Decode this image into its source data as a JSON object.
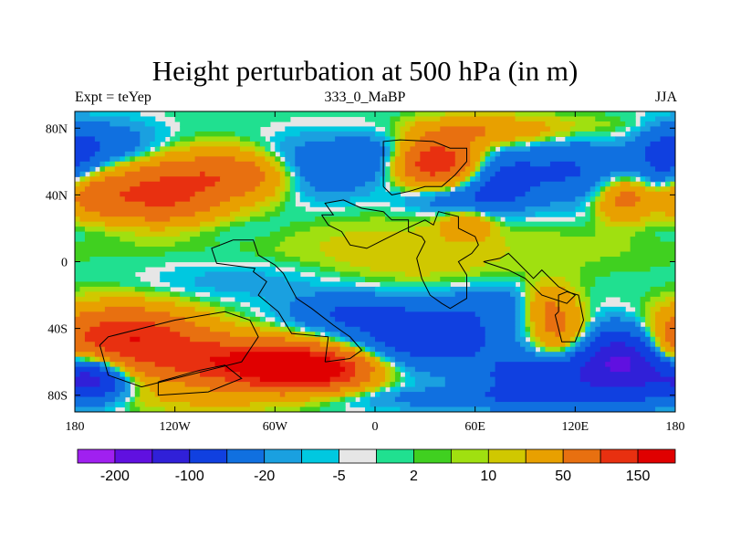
{
  "title": "Height perturbation at 500 hPa (in m)",
  "subtitle_left": "Expt = teYep",
  "subtitle_center": "333_0_MaBP",
  "subtitle_right": "JJA",
  "map": {
    "lon_range": [
      -180,
      180
    ],
    "lat_range": [
      -90,
      90
    ],
    "lon_ticks": [
      {
        "value": -180,
        "label": "180"
      },
      {
        "value": -120,
        "label": "120W"
      },
      {
        "value": -60,
        "label": "60W"
      },
      {
        "value": 0,
        "label": "0"
      },
      {
        "value": 60,
        "label": "60E"
      },
      {
        "value": 120,
        "label": "120E"
      },
      {
        "value": 180,
        "label": "180"
      }
    ],
    "lat_ticks": [
      {
        "value": 80,
        "label": "80N"
      },
      {
        "value": 40,
        "label": "40N"
      },
      {
        "value": 0,
        "label": "0"
      },
      {
        "value": -40,
        "label": "40S"
      },
      {
        "value": -80,
        "label": "80S"
      }
    ],
    "background_color": "#e6e6e6"
  },
  "chart_data": {
    "type": "heatmap",
    "title": "Height perturbation at 500 hPa (in m)",
    "units": "m",
    "x_axis": "longitude",
    "y_axis": "latitude",
    "xlim": [
      -180,
      180
    ],
    "ylim": [
      -90,
      90
    ],
    "contour_levels": [
      -300,
      -200,
      -150,
      -100,
      -50,
      -20,
      -10,
      -5,
      -2,
      2,
      5,
      10,
      20,
      50,
      100,
      150,
      200
    ],
    "colorbar_labels": [
      {
        "after_box": 1,
        "label": "-200"
      },
      {
        "after_box": 3,
        "label": "-100"
      },
      {
        "after_box": 5,
        "label": "-20"
      },
      {
        "after_box": 7,
        "label": "-5"
      },
      {
        "after_box": 9,
        "label": "2"
      },
      {
        "after_box": 11,
        "label": "10"
      },
      {
        "after_box": 13,
        "label": "50"
      },
      {
        "after_box": 15,
        "label": "150"
      }
    ],
    "colors": [
      "#a020f0",
      "#6010e0",
      "#3020d8",
      "#1040e0",
      "#1070e0",
      "#1aa0e0",
      "#00c8e0",
      "#e6e6e6",
      "#20e090",
      "#40d020",
      "#a0e010",
      "#d0c800",
      "#e8a000",
      "#e87010",
      "#e83010",
      "#e00000"
    ],
    "features": [
      {
        "lon": -130,
        "lat": 40,
        "amp": 110,
        "sx": 25,
        "sy": 13
      },
      {
        "lon": -80,
        "lat": 52,
        "amp": 90,
        "sx": 28,
        "sy": 10
      },
      {
        "lon": -40,
        "lat": 55,
        "amp": -60,
        "sx": 25,
        "sy": 12
      },
      {
        "lon": 10,
        "lat": 63,
        "amp": -50,
        "sx": 20,
        "sy": 10
      },
      {
        "lon": 35,
        "lat": 60,
        "amp": 160,
        "sx": 18,
        "sy": 10
      },
      {
        "lon": 65,
        "lat": 78,
        "amp": 45,
        "sx": 30,
        "sy": 6
      },
      {
        "lon": 75,
        "lat": 50,
        "amp": -60,
        "sx": 18,
        "sy": 12
      },
      {
        "lon": 120,
        "lat": 80,
        "amp": 12,
        "sx": 40,
        "sy": 6
      },
      {
        "lon": 120,
        "lat": 55,
        "amp": -50,
        "sx": 22,
        "sy": 14
      },
      {
        "lon": 150,
        "lat": 38,
        "amp": 70,
        "sx": 12,
        "sy": 9
      },
      {
        "lon": 175,
        "lat": 60,
        "amp": -60,
        "sx": 14,
        "sy": 14
      },
      {
        "lon": -170,
        "lat": 40,
        "amp": 60,
        "sx": 14,
        "sy": 9
      },
      {
        "lon": -160,
        "lat": 70,
        "amp": -40,
        "sx": 22,
        "sy": 10
      },
      {
        "lon": -130,
        "lat": 20,
        "amp": -12,
        "sx": 45,
        "sy": 6
      },
      {
        "lon": -20,
        "lat": 10,
        "amp": 9,
        "sx": 40,
        "sy": 14
      },
      {
        "lon": 55,
        "lat": 22,
        "amp": 45,
        "sx": 10,
        "sy": 6
      },
      {
        "lon": 60,
        "lat": 37,
        "amp": -30,
        "sx": 18,
        "sy": 6
      },
      {
        "lon": 30,
        "lat": 38,
        "amp": -20,
        "sx": 15,
        "sy": 6
      },
      {
        "lon": 30,
        "lat": 0,
        "amp": 12,
        "sx": 35,
        "sy": 14
      },
      {
        "lon": 110,
        "lat": 10,
        "amp": 7,
        "sx": 55,
        "sy": 12
      },
      {
        "lon": 80,
        "lat": -25,
        "amp": -30,
        "sx": 25,
        "sy": 8
      },
      {
        "lon": -80,
        "lat": -12,
        "amp": -15,
        "sx": 40,
        "sy": 8
      },
      {
        "lon": -150,
        "lat": -45,
        "amp": 140,
        "sx": 30,
        "sy": 12
      },
      {
        "lon": -80,
        "lat": -60,
        "amp": 140,
        "sx": 40,
        "sy": 10
      },
      {
        "lon": -40,
        "lat": -65,
        "amp": 170,
        "sx": 25,
        "sy": 8
      },
      {
        "lon": -170,
        "lat": -70,
        "amp": -120,
        "sx": 15,
        "sy": 9
      },
      {
        "lon": -100,
        "lat": -82,
        "amp": 20,
        "sx": 40,
        "sy": 6
      },
      {
        "lon": 30,
        "lat": -45,
        "amp": -80,
        "sx": 35,
        "sy": 14
      },
      {
        "lon": -20,
        "lat": -30,
        "amp": -40,
        "sx": 25,
        "sy": 8
      },
      {
        "lon": 110,
        "lat": -40,
        "amp": 70,
        "sx": 12,
        "sy": 14
      },
      {
        "lon": 100,
        "lat": -25,
        "amp": 40,
        "sx": 10,
        "sy": 8
      },
      {
        "lon": 150,
        "lat": -60,
        "amp": -160,
        "sx": 20,
        "sy": 14
      },
      {
        "lon": 100,
        "lat": -70,
        "amp": -80,
        "sx": 25,
        "sy": 10
      },
      {
        "lon": 175,
        "lat": -55,
        "amp": 40,
        "sx": 10,
        "sy": 12
      },
      {
        "lon": 60,
        "lat": -82,
        "amp": -30,
        "sx": 60,
        "sy": 5
      }
    ],
    "land_outlines": [
      [
        [
          -30,
          -60
        ],
        [
          -28,
          -45
        ],
        [
          -50,
          -43
        ],
        [
          -58,
          -30
        ],
        [
          -70,
          -20
        ],
        [
          -65,
          -12
        ],
        [
          -73,
          -6
        ],
        [
          -72,
          -4
        ],
        [
          -95,
          -1
        ],
        [
          -98,
          8
        ],
        [
          -85,
          13
        ],
        [
          -73,
          13
        ],
        [
          -70,
          4
        ],
        [
          -60,
          -2
        ],
        [
          -55,
          -7
        ],
        [
          -47,
          -22
        ],
        [
          -38,
          -28
        ],
        [
          -25,
          -38
        ],
        [
          -15,
          -45
        ],
        [
          -8,
          -53
        ],
        [
          -15,
          -58
        ],
        [
          -30,
          -60
        ]
      ],
      [
        [
          -32,
          28
        ],
        [
          -25,
          28
        ],
        [
          -30,
          35
        ],
        [
          -19,
          37
        ],
        [
          -8,
          32
        ],
        [
          5,
          30
        ],
        [
          10,
          25
        ],
        [
          20,
          25
        ],
        [
          20,
          18
        ],
        [
          28,
          15
        ],
        [
          30,
          12
        ],
        [
          25,
          2
        ],
        [
          28,
          -10
        ],
        [
          33,
          -20
        ],
        [
          40,
          -25
        ],
        [
          45,
          -28
        ],
        [
          55,
          -22
        ],
        [
          55,
          -8
        ],
        [
          50,
          0
        ],
        [
          58,
          5
        ],
        [
          62,
          10
        ],
        [
          60,
          15
        ],
        [
          50,
          20
        ],
        [
          50,
          27
        ],
        [
          38,
          30
        ],
        [
          35,
          22
        ],
        [
          30,
          25
        ],
        [
          15,
          18
        ],
        [
          5,
          13
        ],
        [
          -5,
          8
        ],
        [
          -15,
          10
        ],
        [
          -20,
          18
        ],
        [
          -28,
          22
        ],
        [
          -32,
          28
        ]
      ],
      [
        [
          5,
          45
        ],
        [
          5,
          72
        ],
        [
          15,
          73
        ],
        [
          35,
          72
        ],
        [
          45,
          68
        ],
        [
          55,
          68
        ],
        [
          55,
          60
        ],
        [
          48,
          52
        ],
        [
          40,
          45
        ],
        [
          30,
          45
        ],
        [
          20,
          42
        ],
        [
          10,
          40
        ],
        [
          5,
          45
        ]
      ],
      [
        [
          65,
          0
        ],
        [
          75,
          2
        ],
        [
          80,
          5
        ],
        [
          85,
          0
        ],
        [
          95,
          -10
        ],
        [
          100,
          -5
        ],
        [
          110,
          -15
        ],
        [
          120,
          -20
        ],
        [
          115,
          -25
        ],
        [
          100,
          -20
        ],
        [
          90,
          -10
        ],
        [
          80,
          -5
        ],
        [
          65,
          0
        ]
      ],
      [
        [
          110,
          -30
        ],
        [
          110,
          -20
        ],
        [
          115,
          -18
        ],
        [
          122,
          -20
        ],
        [
          125,
          -35
        ],
        [
          120,
          -48
        ],
        [
          112,
          -48
        ],
        [
          110,
          -40
        ],
        [
          108,
          -32
        ],
        [
          110,
          -30
        ]
      ],
      [
        [
          -165,
          -50
        ],
        [
          -160,
          -45
        ],
        [
          -140,
          -40
        ],
        [
          -120,
          -35
        ],
        [
          -90,
          -30
        ],
        [
          -75,
          -35
        ],
        [
          -70,
          -45
        ],
        [
          -80,
          -60
        ],
        [
          -100,
          -65
        ],
        [
          -120,
          -70
        ],
        [
          -140,
          -75
        ],
        [
          -160,
          -68
        ],
        [
          -165,
          -50
        ]
      ],
      [
        [
          -130,
          -72
        ],
        [
          -105,
          -65
        ],
        [
          -90,
          -62
        ],
        [
          -80,
          -70
        ],
        [
          -100,
          -78
        ],
        [
          -130,
          -80
        ],
        [
          -130,
          -72
        ]
      ]
    ]
  }
}
